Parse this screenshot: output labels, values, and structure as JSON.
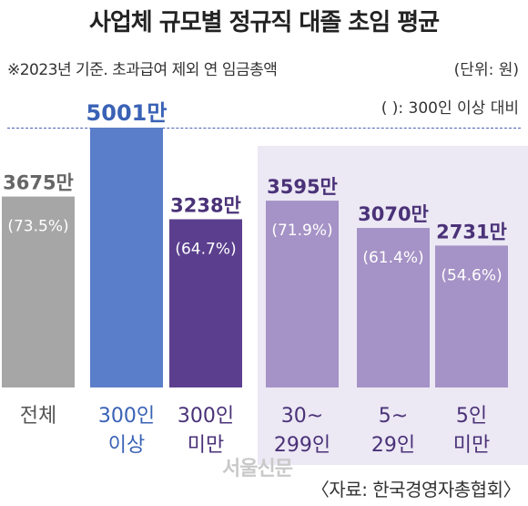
{
  "chart_data": {
    "type": "bar",
    "title": "사업체 규모별 정규직 대졸 초임 평균",
    "note": "※2023년 기준. 초과급여 제외 연 임금총액",
    "unit": "(단위: 원)",
    "paren_note": "( ): 300인 이상 대비",
    "source": "〈자료: 한국경영자총협회〉",
    "categories": [
      [
        "전체"
      ],
      [
        "300인",
        "이상"
      ],
      [
        "300인",
        "미만"
      ],
      [
        "30~",
        "299인"
      ],
      [
        "5~",
        "29인"
      ],
      [
        "5인",
        "미만"
      ]
    ],
    "values": [
      3675,
      5001,
      3238,
      3595,
      3070,
      2731
    ],
    "value_labels": [
      "3675만",
      "5001만",
      "3238만",
      "3595만",
      "3070만",
      "2731만"
    ],
    "ratio_labels": [
      "(73.5%)",
      "",
      "(64.7%)",
      "(71.9%)",
      "(61.4%)",
      "(54.6%)"
    ],
    "colors": [
      "#a6a6a6",
      "#5a7ec9",
      "#5b3f8e",
      "#a592c6",
      "#a592c6",
      "#a592c6"
    ],
    "label_colors": [
      "#666666",
      "#3a62b5",
      "#4a3278",
      "#4a3278",
      "#4a3278",
      "#4a3278"
    ],
    "category_label_colors": [
      "#555555",
      "#3a62b5",
      "#4a3278",
      "#4a3278",
      "#4a3278",
      "#4a3278"
    ]
  },
  "watermark": "서울신문"
}
